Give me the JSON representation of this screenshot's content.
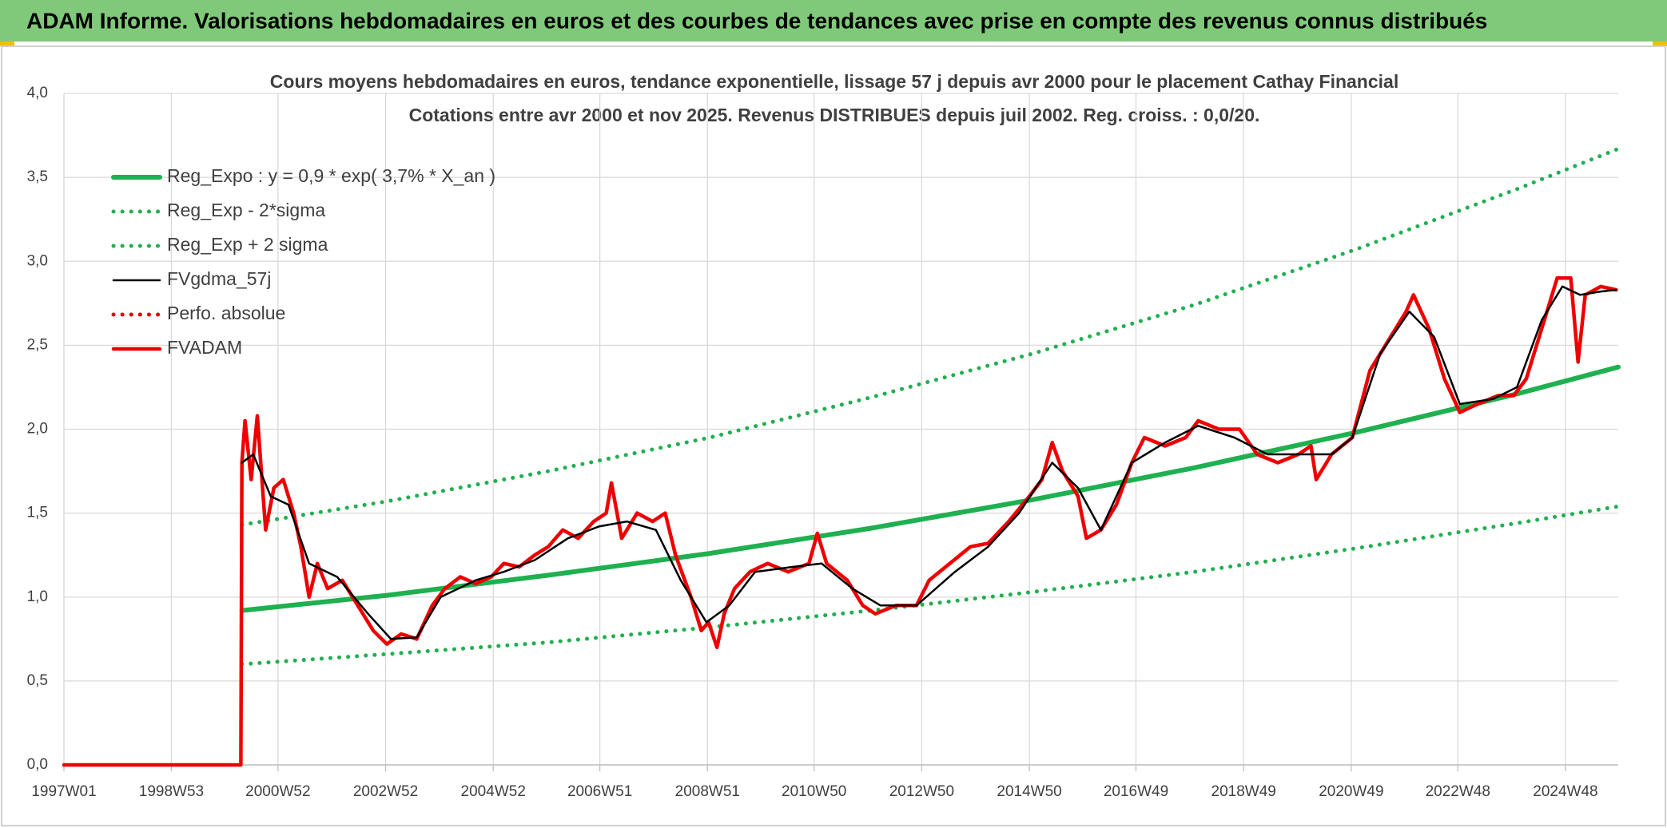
{
  "header": {
    "title": "ADAM Informe. Valorisations hebdomadaires en euros et des courbes de tendances avec prise en compte des revenus connus distribués"
  },
  "chart_data": {
    "type": "line",
    "title": "Cours moyens hebdomadaires en euros, tendance exponentielle, lissage 57 j depuis avr 2000 pour le placement Cathay Financial",
    "subtitle": "Cotations entre avr 2000 et nov 2025. Revenus DISTRIBUES depuis juil 2002. Reg. croiss. : 0,0/20.",
    "xlim": [
      "1997W01",
      "2025W47"
    ],
    "xticks": [
      "1997W01",
      "1998W53",
      "2000W52",
      "2002W52",
      "2004W52",
      "2006W51",
      "2008W51",
      "2010W50",
      "2012W50",
      "2014W50",
      "2016W49",
      "2018W49",
      "2020W49",
      "2022W48",
      "2024W48"
    ],
    "ylim": [
      0,
      4
    ],
    "yticks": [
      {
        "value": 0,
        "label": "0,0"
      },
      {
        "value": 0.5,
        "label": "0,5"
      },
      {
        "value": 1,
        "label": "1,0"
      },
      {
        "value": 1.5,
        "label": "1,5"
      },
      {
        "value": 2,
        "label": "2,0"
      },
      {
        "value": 2.5,
        "label": "2,5"
      },
      {
        "value": 3,
        "label": "3,0"
      },
      {
        "value": 3.5,
        "label": "3,5"
      },
      {
        "value": 4,
        "label": "4,0"
      }
    ],
    "grid": true,
    "legend": "upper left",
    "series": [
      {
        "name": "Reg_Expo : y = 0,9 * exp( 3,7% *  X_an )",
        "color": "#1fb04f",
        "style": "solid",
        "x": [
          "2000W17",
          "2003W01",
          "2006W01",
          "2009W01",
          "2012W01",
          "2015W01",
          "2018W01",
          "2021W01",
          "2024W01",
          "2025W47"
        ],
        "values": [
          0.92,
          1.01,
          1.13,
          1.26,
          1.41,
          1.58,
          1.77,
          1.98,
          2.21,
          2.37
        ]
      },
      {
        "name": "Reg_Exp - 2*sigma",
        "color": "#1fb04f",
        "style": "dotted",
        "x": [
          "2000W17",
          "2003W01",
          "2006W01",
          "2009W01",
          "2012W01",
          "2015W01",
          "2018W01",
          "2021W01",
          "2024W01",
          "2025W47"
        ],
        "values": [
          0.6,
          0.66,
          0.73,
          0.82,
          0.92,
          1.03,
          1.15,
          1.29,
          1.44,
          1.54
        ]
      },
      {
        "name": "Reg_Exp + 2 sigma",
        "color": "#1fb04f",
        "style": "dotted",
        "x": [
          "2000W17",
          "2003W01",
          "2006W01",
          "2009W01",
          "2012W01",
          "2015W01",
          "2018W01",
          "2021W01",
          "2024W01",
          "2025W47"
        ],
        "values": [
          1.43,
          1.57,
          1.75,
          1.95,
          2.19,
          2.45,
          2.74,
          3.07,
          3.43,
          3.67
        ]
      },
      {
        "name": "FVgdma_57j",
        "color": "#000000",
        "style": "thin",
        "x": [
          "2000W17",
          "2000W28",
          "2000W45",
          "2001W10",
          "2001W30",
          "2002W05",
          "2002W35",
          "2003W05",
          "2003W30",
          "2004W01",
          "2004W35",
          "2005W10",
          "2005W40",
          "2006W20",
          "2006W50",
          "2007W25",
          "2008W01",
          "2008W25",
          "2008W50",
          "2009W20",
          "2009W45",
          "2010W30",
          "2011W05",
          "2011W35",
          "2012W10",
          "2012W45",
          "2013W30",
          "2014W10",
          "2014W40",
          "2015W20",
          "2015W45",
          "2016W15",
          "2016W45",
          "2017W25",
          "2018W05",
          "2018W40",
          "2019W20",
          "2019W50",
          "2020W30",
          "2020W50",
          "2021W25",
          "2022W01",
          "2022W25",
          "2022W50",
          "2023W30",
          "2024W01",
          "2024W25",
          "2024W45",
          "2025W10",
          "2025W30",
          "2025W45"
        ],
        "values": [
          1.8,
          1.85,
          1.6,
          1.55,
          1.2,
          1.12,
          0.9,
          0.75,
          0.76,
          1.0,
          1.1,
          1.15,
          1.22,
          1.35,
          1.42,
          1.45,
          1.4,
          1.1,
          0.85,
          0.95,
          1.15,
          1.18,
          1.2,
          1.05,
          0.95,
          0.95,
          1.15,
          1.3,
          1.5,
          1.8,
          1.65,
          1.4,
          1.8,
          1.92,
          2.02,
          1.95,
          1.85,
          1.85,
          1.85,
          1.95,
          2.45,
          2.7,
          2.55,
          2.15,
          2.18,
          2.25,
          2.65,
          2.85,
          2.8,
          2.82,
          2.83
        ]
      },
      {
        "name": "Perfo. absolue",
        "color": "#e00000",
        "style": "dotted",
        "x": [],
        "values": []
      },
      {
        "name": "FVADAM",
        "color": "#ee0000",
        "style": "thick",
        "x": [
          "1997W01",
          "2000W16",
          "2000W17",
          "2000W20",
          "2000W26",
          "2000W32",
          "2000W40",
          "2000W48",
          "2001W05",
          "2001W15",
          "2001W22",
          "2001W30",
          "2001W38",
          "2001W48",
          "2002W10",
          "2002W25",
          "2002W40",
          "2003W01",
          "2003W15",
          "2003W30",
          "2003W45",
          "2004W05",
          "2004W20",
          "2004W35",
          "2004W50",
          "2005W10",
          "2005W25",
          "2005W40",
          "2006W01",
          "2006W15",
          "2006W30",
          "2006W45",
          "2007W05",
          "2007W10",
          "2007W20",
          "2007W35",
          "2007W50",
          "2008W10",
          "2008W20",
          "2008W35",
          "2008W45",
          "2008W52",
          "2009W08",
          "2009W15",
          "2009W25",
          "2009W40",
          "2010W05",
          "2010W25",
          "2010W45",
          "2011W01",
          "2011W10",
          "2011W30",
          "2011W45",
          "2012W05",
          "2012W25",
          "2012W45",
          "2013W05",
          "2013W25",
          "2013W45",
          "2014W10",
          "2014W30",
          "2014W50",
          "2015W10",
          "2015W20",
          "2015W30",
          "2015W45",
          "2016W01",
          "2016W15",
          "2016W30",
          "2016W45",
          "2017W05",
          "2017W25",
          "2017W45",
          "2018W05",
          "2018W25",
          "2018W45",
          "2019W10",
          "2019W30",
          "2019W50",
          "2020W10",
          "2020W15",
          "2020W30",
          "2020W50",
          "2021W15",
          "2021W35",
          "2021W50",
          "2022W05",
          "2022W20",
          "2022W35",
          "2022W50",
          "2023W15",
          "2023W35",
          "2023W50",
          "2024W10",
          "2024W25",
          "2024W40",
          "2025W01",
          "2025W08",
          "2025W15",
          "2025W30",
          "2025W45"
        ],
        "values": [
          0,
          0,
          1.8,
          2.05,
          1.7,
          2.08,
          1.4,
          1.65,
          1.7,
          1.5,
          1.3,
          1.0,
          1.2,
          1.05,
          1.1,
          0.95,
          0.8,
          0.72,
          0.78,
          0.75,
          0.95,
          1.05,
          1.12,
          1.08,
          1.12,
          1.2,
          1.18,
          1.25,
          1.3,
          1.4,
          1.35,
          1.45,
          1.5,
          1.68,
          1.35,
          1.5,
          1.45,
          1.5,
          1.25,
          1.0,
          0.8,
          0.85,
          0.7,
          0.9,
          1.05,
          1.15,
          1.2,
          1.15,
          1.2,
          1.38,
          1.2,
          1.1,
          0.95,
          0.9,
          0.95,
          0.95,
          1.1,
          1.2,
          1.3,
          1.32,
          1.45,
          1.6,
          1.7,
          1.92,
          1.75,
          1.6,
          1.35,
          1.4,
          1.55,
          1.8,
          1.95,
          1.9,
          1.95,
          2.05,
          2.0,
          2.0,
          1.85,
          1.8,
          1.85,
          1.9,
          1.7,
          1.85,
          1.95,
          2.35,
          2.55,
          2.7,
          2.8,
          2.6,
          2.3,
          2.1,
          2.15,
          2.2,
          2.2,
          2.3,
          2.6,
          2.9,
          2.9,
          2.4,
          2.8,
          2.85,
          2.83
        ]
      }
    ]
  }
}
